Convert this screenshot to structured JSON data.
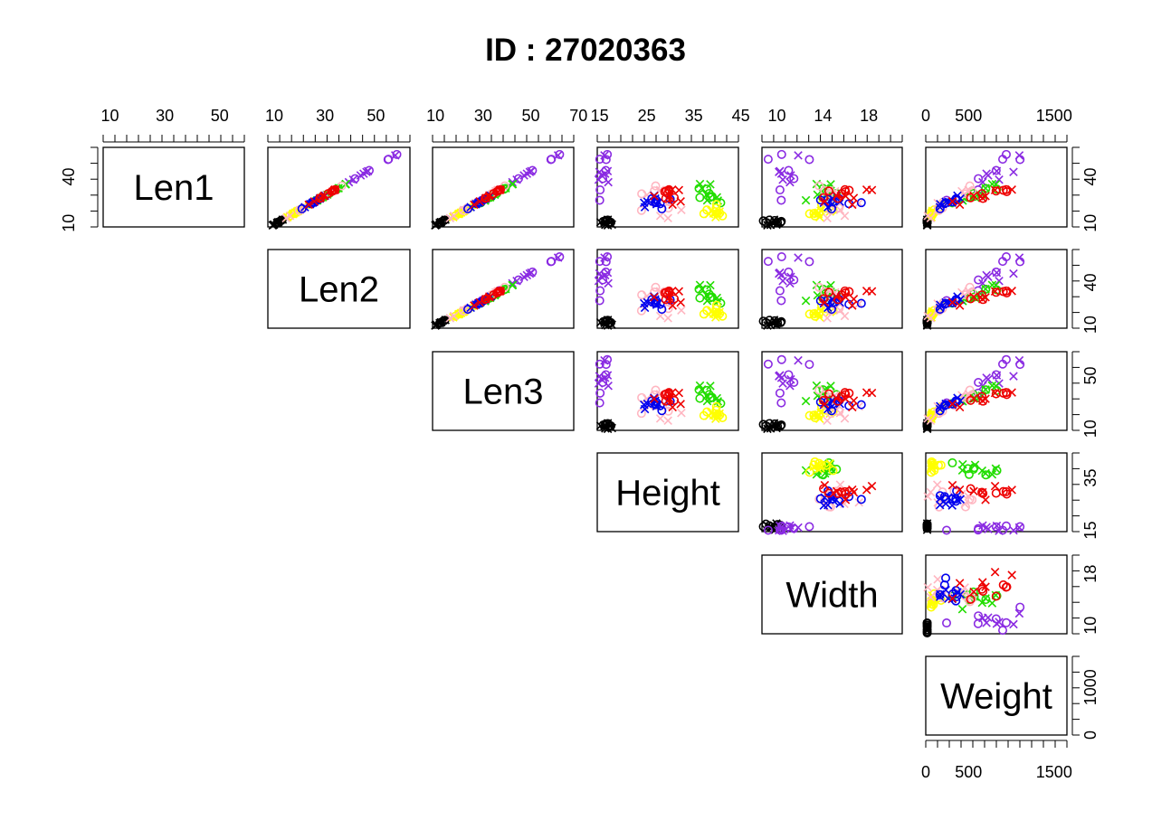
{
  "title": "ID : 27020363",
  "chart_data": {
    "type": "scatter",
    "layout": "upper-triangle pairs (scatterplot matrix)",
    "variables": [
      "Len1",
      "Len2",
      "Len3",
      "Height",
      "Width",
      "Weight"
    ],
    "tick_labels": {
      "Len1": [
        "10",
        "40"
      ],
      "Len2": [
        "10",
        "40"
      ],
      "Len3": [
        "10",
        "50"
      ],
      "Height": [
        "15",
        "35"
      ],
      "Width": [
        "10",
        "18"
      ],
      "Weight": [
        "0",
        "1000"
      ]
    },
    "top_axis_labels": [
      [
        "10",
        "30",
        "50"
      ],
      [
        "10",
        "30",
        "50"
      ],
      [
        "10",
        "30",
        "50",
        "70"
      ],
      [
        "15",
        "25",
        "35",
        "45"
      ],
      [
        "10",
        "14",
        "18"
      ],
      [
        "0",
        "500",
        "1500"
      ]
    ],
    "bottom_axis_labels": [
      "0",
      "500",
      "1500"
    ],
    "ranges": {
      "Len1": [
        7.5,
        59.0
      ],
      "Len2": [
        7.5,
        63.4
      ],
      "Len3": [
        8.8,
        68.0
      ],
      "Height": [
        14.5,
        44.5
      ],
      "Width": [
        8.7,
        20.9
      ],
      "Weight": [
        0,
        1650
      ]
    },
    "marker_symbols": [
      "o",
      "x"
    ],
    "groups": [
      {
        "color": "#000000",
        "centers": {
          "Len1": 10.5,
          "Len2": 11.5,
          "Len3": 12.2,
          "Height": 16.5,
          "Width": 9.9,
          "Weight": 9
        },
        "spread": {
          "Len1": 1.1,
          "Len2": 1.2,
          "Len3": 1.3,
          "Height": 0.8,
          "Width": 0.6,
          "Weight": 3
        }
      },
      {
        "color": "#8A2BE2",
        "centers": {
          "Len1": 38,
          "Len2": 41,
          "Len3": 44,
          "Height": 16,
          "Width": 10.8,
          "Weight": 700
        },
        "spread": {
          "Len1": 10,
          "Len2": 10.5,
          "Len3": 11,
          "Height": 0.6,
          "Width": 0.9,
          "Weight": 380
        }
      },
      {
        "color": "#22DD00",
        "centers": {
          "Len1": 28.5,
          "Len2": 31,
          "Len3": 35,
          "Height": 39,
          "Width": 14,
          "Weight": 600
        },
        "spread": {
          "Len1": 3,
          "Len2": 3.2,
          "Len3": 3.3,
          "Height": 1.6,
          "Width": 0.8,
          "Weight": 200
        }
      },
      {
        "color": "#FFFF00",
        "centers": {
          "Len1": 17,
          "Len2": 18.5,
          "Len3": 21,
          "Height": 39,
          "Width": 13.6,
          "Weight": 90
        },
        "spread": {
          "Len1": 2.5,
          "Len2": 2.6,
          "Len3": 2.8,
          "Height": 1.3,
          "Width": 0.6,
          "Weight": 45
        }
      },
      {
        "color": "#FFB6C1",
        "centers": {
          "Len1": 24,
          "Len2": 26,
          "Len3": 28,
          "Height": 27,
          "Width": 15,
          "Weight": 280
        },
        "spread": {
          "Len1": 6,
          "Len2": 6.3,
          "Len3": 6.6,
          "Height": 2.5,
          "Width": 1.2,
          "Weight": 220
        }
      },
      {
        "color": "#0000EE",
        "centers": {
          "Len1": 24,
          "Len2": 26,
          "Len3": 29,
          "Height": 27,
          "Width": 15,
          "Weight": 300
        },
        "spread": {
          "Len1": 3,
          "Len2": 3.2,
          "Len3": 3.4,
          "Height": 1.5,
          "Width": 0.8,
          "Weight": 150
        }
      },
      {
        "color": "#EE0000",
        "centers": {
          "Len1": 27,
          "Len2": 29,
          "Len3": 32,
          "Height": 30,
          "Width": 16.5,
          "Weight": 600
        },
        "spread": {
          "Len1": 3,
          "Len2": 3.2,
          "Len3": 3.4,
          "Height": 2,
          "Width": 1.5,
          "Weight": 250
        }
      }
    ],
    "grid": false,
    "legend": "none"
  }
}
